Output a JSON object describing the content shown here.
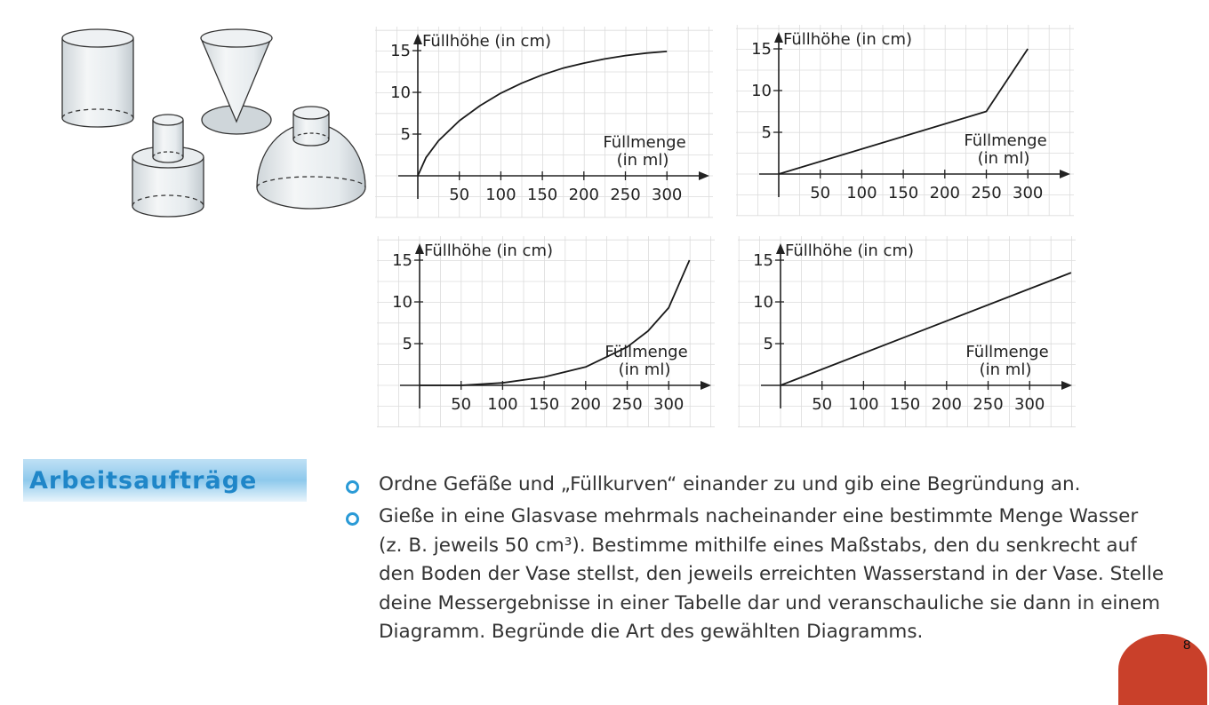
{
  "chart_data": [
    {
      "type": "line",
      "ylabel": "Füllhöhe (in cm)",
      "xlabel": "Füllmenge (in ml)",
      "xticks": [
        50,
        100,
        150,
        200,
        250,
        300
      ],
      "yticks": [
        5,
        10,
        15
      ],
      "xlim": [
        0,
        320
      ],
      "ylim": [
        0,
        15
      ],
      "x": [
        0,
        10,
        25,
        50,
        75,
        100,
        125,
        150,
        175,
        200,
        225,
        250,
        275,
        300
      ],
      "y": [
        0,
        2.2,
        4.2,
        6.6,
        8.4,
        9.9,
        11.1,
        12.1,
        12.9,
        13.5,
        14.0,
        14.4,
        14.7,
        14.9
      ]
    },
    {
      "type": "line",
      "ylabel": "Füllhöhe (in cm)",
      "xlabel": "Füllmenge (in ml)",
      "xticks": [
        50,
        100,
        150,
        200,
        250,
        300
      ],
      "yticks": [
        5,
        10,
        15
      ],
      "xlim": [
        0,
        320
      ],
      "ylim": [
        0,
        15
      ],
      "x": [
        0,
        250,
        300
      ],
      "y": [
        0,
        7.5,
        15
      ]
    },
    {
      "type": "line",
      "ylabel": "Füllhöhe (in cm)",
      "xlabel": "Füllmenge (in ml)",
      "xticks": [
        50,
        100,
        150,
        200,
        250,
        300
      ],
      "yticks": [
        5,
        10,
        15
      ],
      "xlim": [
        0,
        320
      ],
      "ylim": [
        0,
        15
      ],
      "x": [
        0,
        50,
        100,
        150,
        200,
        250,
        275,
        300,
        325
      ],
      "y": [
        0,
        0,
        0.3,
        1.0,
        2.2,
        4.6,
        6.5,
        9.3,
        15
      ]
    },
    {
      "type": "line",
      "ylabel": "Füllhöhe (in cm)",
      "xlabel": "Füllmenge (in ml)",
      "xticks": [
        50,
        100,
        150,
        200,
        250,
        300
      ],
      "yticks": [
        5,
        10,
        15
      ],
      "xlim": [
        0,
        320
      ],
      "ylim": [
        0,
        15
      ],
      "x": [
        0,
        350
      ],
      "y": [
        0,
        13.5
      ]
    }
  ],
  "section": {
    "heading": "Arbeitsaufträge",
    "tasks": [
      "Ordne Gefäße und „Füllkurven“ einander zu und gib eine Begründung an.",
      "Gieße in eine Glasvase mehrmals nacheinander eine bestimmte Menge Wasser\n(z. B. jeweils 50 cm³). Bestimme mithilfe eines Maßstabs, den du senkrecht auf\nden Boden der Vase stellst, den jeweils erreichten Wasserstand in der Vase. Stelle\ndeine Messergebnisse in einer Tabelle dar und veranschauliche sie dann in einem\nDiagramm. Begründe die Art des gewählten Diagramms."
    ]
  },
  "page_corner_mark": "8",
  "colors": {
    "heading_text": "#1f86c8",
    "heading_band": "#8ec9ec",
    "bullet": "#2a9ad6",
    "grid": "#dcdcdc"
  }
}
